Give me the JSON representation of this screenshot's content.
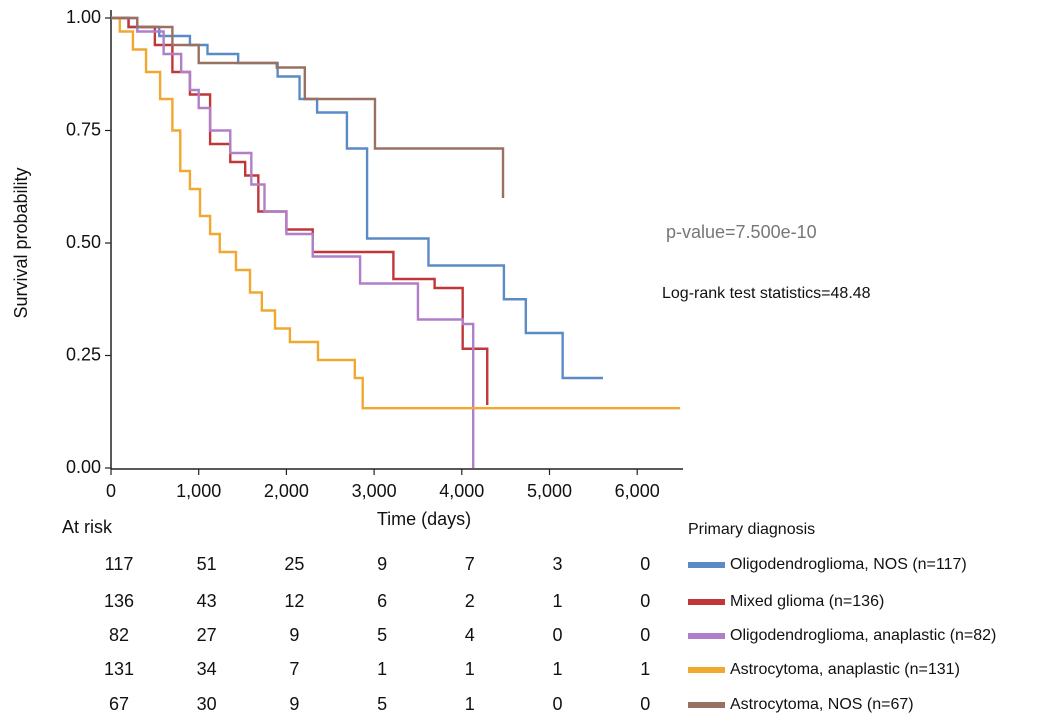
{
  "chart_data": {
    "type": "step",
    "xlabel": "Time (days)",
    "ylabel": "Survival probability",
    "xlim": [
      0,
      6520
    ],
    "ylim": [
      0,
      1
    ],
    "xticks": [
      0,
      {
        "value": 1000,
        "label": "1,000"
      },
      {
        "value": 2000,
        "label": "2,000"
      },
      {
        "value": 3000,
        "label": "3,000"
      },
      {
        "value": 4000,
        "label": "4,000"
      },
      {
        "value": 5000,
        "label": "5,000"
      },
      {
        "value": 6000,
        "label": "6,000"
      }
    ],
    "yticks": [
      {
        "value": 0,
        "label": "0.00"
      },
      {
        "value": 0.25,
        "label": "0.25"
      },
      {
        "value": 0.5,
        "label": "0.50"
      },
      {
        "value": 0.75,
        "label": "0.75"
      },
      {
        "value": 1,
        "label": "1.00"
      }
    ],
    "annotations": [
      "p-value=7.500e-10",
      "Log-rank test statistics=48.48"
    ],
    "risk_title": "At risk",
    "legend_title": "Primary diagnosis",
    "series": [
      {
        "name": "Oligodendroglioma, NOS (n=117)",
        "color": "#5b8bc6",
        "x": [
          0,
          200,
          550,
          900,
          1100,
          1450,
          1900,
          2150,
          2350,
          2690,
          2920,
          3620,
          4480,
          4730,
          5150,
          5610
        ],
        "values": [
          1,
          0.98,
          0.96,
          0.94,
          0.92,
          0.9,
          0.87,
          0.82,
          0.79,
          0.71,
          0.51,
          0.45,
          0.375,
          0.3,
          0.2,
          0.2
        ],
        "at_risk": [
          117,
          51,
          25,
          9,
          7,
          3,
          0
        ]
      },
      {
        "name": "Mixed glioma (n=136)",
        "color": "#c0373a",
        "x": [
          0,
          200,
          500,
          700,
          900,
          1130,
          1360,
          1530,
          1680,
          2000,
          2300,
          3220,
          3690,
          4010,
          4290
        ],
        "values": [
          1,
          0.98,
          0.94,
          0.88,
          0.83,
          0.72,
          0.68,
          0.65,
          0.57,
          0.53,
          0.48,
          0.42,
          0.4,
          0.265,
          0.14
        ],
        "at_risk": [
          136,
          43,
          12,
          6,
          2,
          1,
          0
        ]
      },
      {
        "name": "Oligodendroglioma, anaplastic (n=82)",
        "color": "#b07fc8",
        "x": [
          0,
          300,
          600,
          800,
          900,
          1000,
          1130,
          1360,
          1600,
          1750,
          2000,
          2300,
          2840,
          3500,
          4010,
          4130
        ],
        "values": [
          1,
          0.97,
          0.92,
          0.88,
          0.84,
          0.8,
          0.75,
          0.7,
          0.63,
          0.57,
          0.52,
          0.47,
          0.41,
          0.33,
          0.32,
          0
        ],
        "at_risk": [
          82,
          27,
          9,
          5,
          4,
          0,
          0
        ]
      },
      {
        "name": "Astrocytoma, anaplastic (n=131)",
        "color": "#f0a830",
        "x": [
          0,
          100,
          250,
          400,
          560,
          700,
          790,
          900,
          1015,
          1130,
          1240,
          1425,
          1585,
          1720,
          1870,
          2040,
          2360,
          2780,
          2870,
          6490
        ],
        "values": [
          1,
          0.97,
          0.93,
          0.88,
          0.82,
          0.75,
          0.66,
          0.62,
          0.56,
          0.52,
          0.48,
          0.44,
          0.39,
          0.35,
          0.31,
          0.28,
          0.24,
          0.2,
          0.133,
          0.133
        ],
        "at_risk": [
          131,
          34,
          7,
          1,
          1,
          1,
          1
        ]
      },
      {
        "name": "Astrocytoma, NOS (n=67)",
        "color": "#9a7060",
        "x": [
          0,
          300,
          700,
          1000,
          1890,
          2210,
          3010,
          4470
        ],
        "values": [
          1,
          0.98,
          0.94,
          0.9,
          0.89,
          0.82,
          0.71,
          0.6
        ],
        "at_risk": [
          67,
          30,
          9,
          5,
          1,
          0,
          0
        ]
      }
    ]
  }
}
